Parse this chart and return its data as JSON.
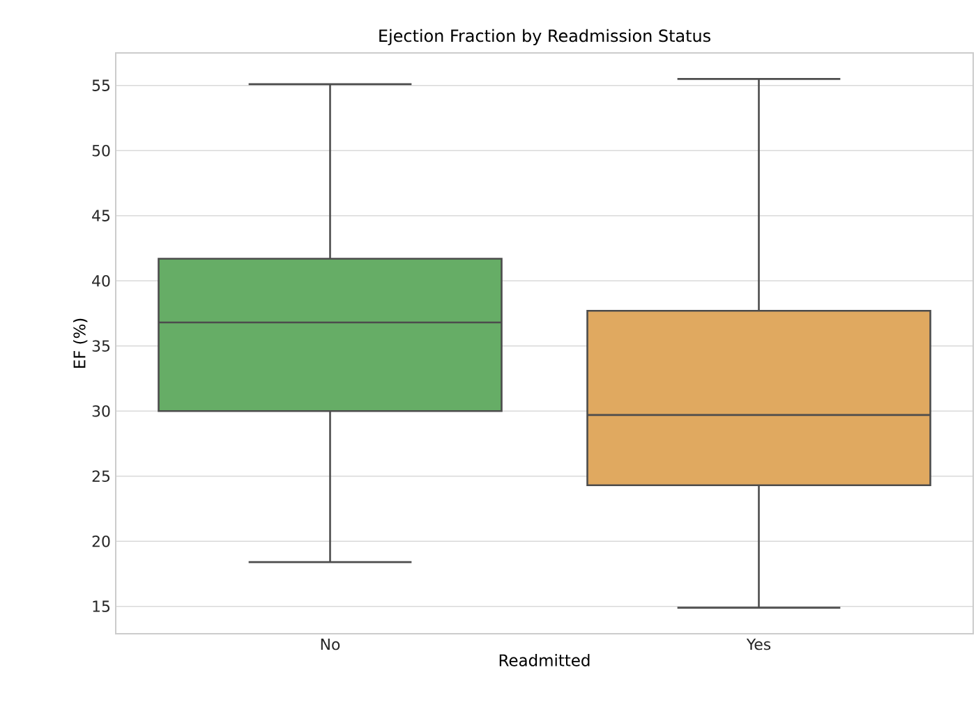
{
  "chart_data": {
    "type": "box",
    "title": "Ejection Fraction by Readmission Status",
    "xlabel": "Readmitted",
    "ylabel": "EF (%)",
    "categories": [
      "No",
      "Yes"
    ],
    "boxes": [
      {
        "low": 18.4,
        "q1": 30.0,
        "median": 36.8,
        "q3": 41.7,
        "high": 55.1
      },
      {
        "low": 14.9,
        "q1": 24.3,
        "median": 29.7,
        "q3": 37.7,
        "high": 55.5
      }
    ],
    "colors": [
      "#66ad66",
      "#e0a960"
    ],
    "ylim": [
      12.9,
      57.5
    ],
    "yticks": [
      15,
      20,
      25,
      30,
      35,
      40,
      45,
      50,
      55
    ],
    "grid": "y"
  }
}
